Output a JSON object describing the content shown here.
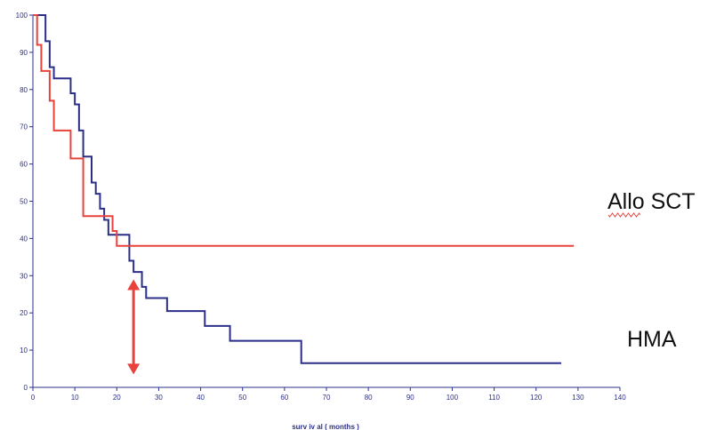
{
  "chart_data": {
    "type": "line",
    "step": true,
    "xlabel": "surv iv al ( months )",
    "ylabel": "",
    "xlim": [
      0,
      140
    ],
    "ylim": [
      0,
      100
    ],
    "x_ticks": [
      0,
      10,
      20,
      30,
      40,
      50,
      60,
      70,
      80,
      90,
      100,
      110,
      120,
      130,
      140
    ],
    "y_ticks": [
      0,
      10,
      20,
      30,
      40,
      50,
      60,
      70,
      80,
      90,
      100
    ],
    "grid": false,
    "series": [
      {
        "name": "HMA",
        "color": "#2b2f8a",
        "x": [
          0,
          3,
          4,
          5,
          6,
          9,
          10,
          11,
          12,
          14,
          15,
          16,
          17,
          18,
          23,
          24,
          26,
          27,
          32,
          41,
          47,
          64,
          126
        ],
        "y": [
          100,
          93,
          86,
          83,
          83,
          79,
          76,
          69,
          62,
          55,
          52,
          48,
          45,
          41,
          34,
          31,
          27,
          24,
          20.5,
          16.5,
          12.5,
          6.5,
          6.5
        ]
      },
      {
        "name": "Allo SCT",
        "color": "#e8423c",
        "x": [
          0,
          1,
          2,
          4,
          5,
          9,
          12,
          19,
          20,
          129
        ],
        "y": [
          100,
          92,
          85,
          77,
          69,
          61.5,
          46,
          42,
          38,
          38
        ]
      }
    ],
    "annotations": [
      {
        "type": "double-arrow",
        "x": 24,
        "y_from": 29,
        "y_to": 3.5,
        "color": "#e8423c"
      }
    ]
  }
}
